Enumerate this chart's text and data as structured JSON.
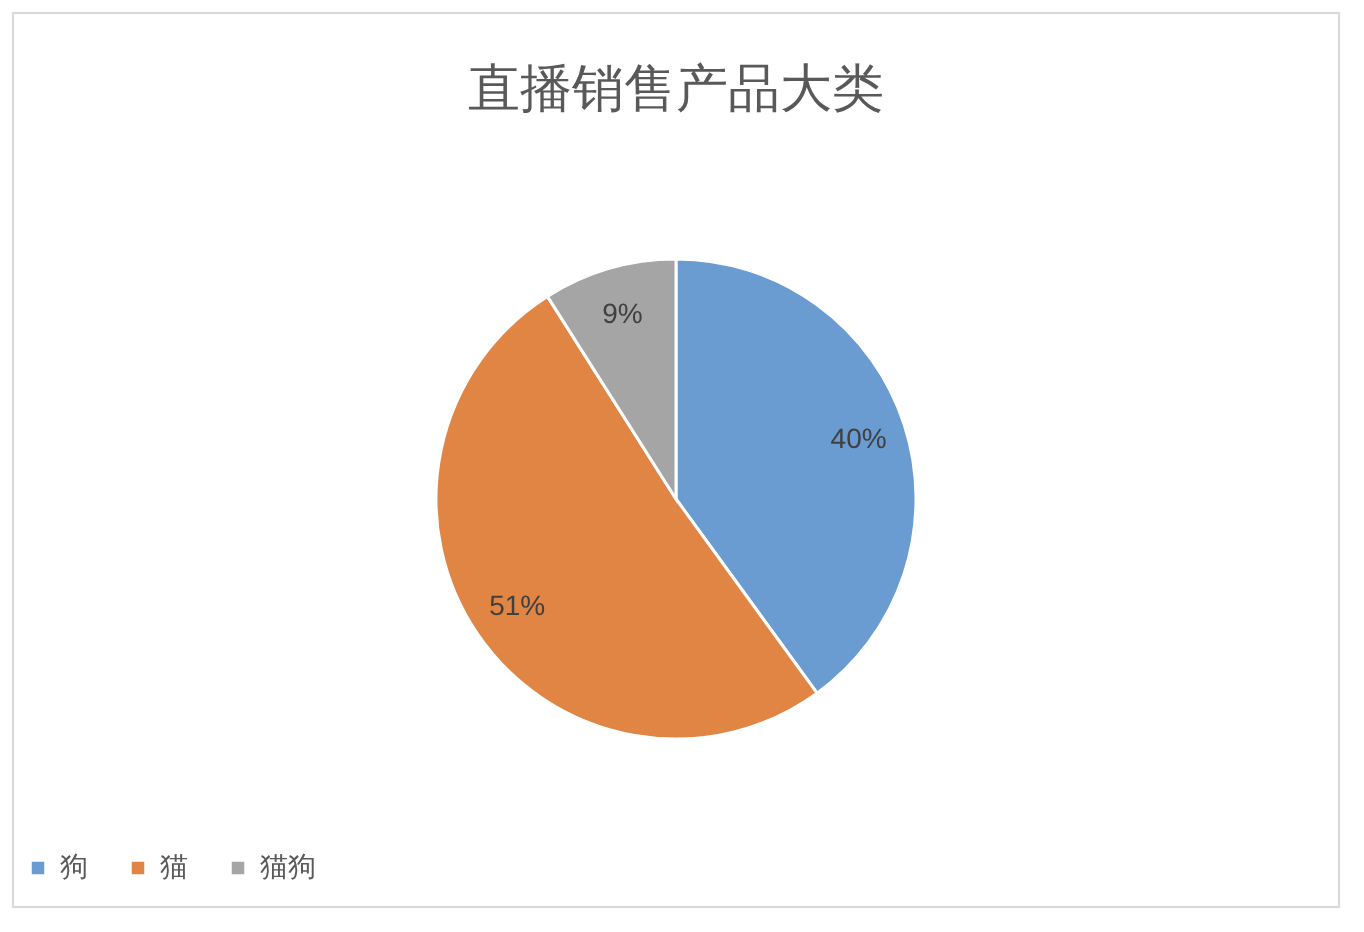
{
  "chart_data": {
    "type": "pie",
    "title": "直播销售产品大类",
    "categories": [
      "狗",
      "猫",
      "猫狗"
    ],
    "values": [
      40,
      51,
      9
    ],
    "colors": [
      "#6a9bd1",
      "#e08544",
      "#a5a5a5"
    ],
    "value_labels": [
      "40%",
      "51%",
      "9%"
    ],
    "legend": "bottom"
  }
}
